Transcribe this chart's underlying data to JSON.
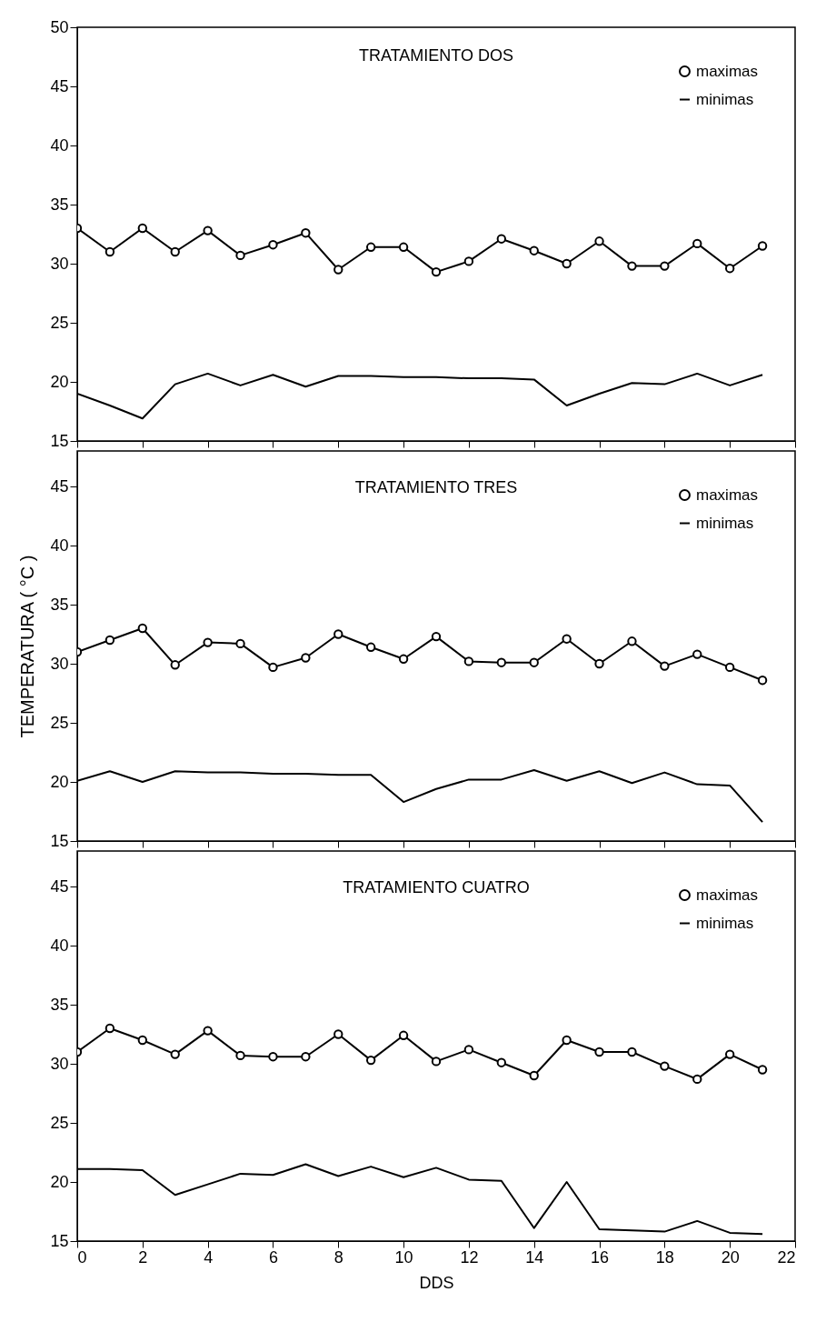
{
  "chart_data": [
    {
      "type": "line",
      "title": "TRATAMIENTO DOS",
      "x": [
        0,
        1,
        2,
        3,
        4,
        5,
        6,
        7,
        8,
        9,
        10,
        11,
        12,
        13,
        14,
        15,
        16,
        17,
        18,
        19,
        20,
        21
      ],
      "xlim": [
        0,
        22
      ],
      "xticks": [
        0,
        2,
        4,
        6,
        8,
        10,
        12,
        14,
        16,
        18,
        20,
        22
      ],
      "ylim": [
        15,
        50
      ],
      "yticks": [
        15,
        20,
        25,
        30,
        35,
        40,
        45,
        50
      ],
      "tick_labels": "y",
      "grid": false,
      "legend": "top right",
      "series": [
        {
          "name": "maximas",
          "color": "#000000",
          "marker": "circle",
          "values": [
            33,
            31,
            33,
            31,
            32.8,
            30.7,
            31.6,
            32.6,
            29.5,
            31.4,
            31.4,
            29.3,
            30.2,
            32.1,
            31.1,
            30,
            31.9,
            29.8,
            29.8,
            31.7,
            29.6,
            31.5
          ]
        },
        {
          "name": "minimas",
          "color": "#000000",
          "marker": "none",
          "values": [
            19,
            18,
            16.9,
            19.8,
            20.7,
            19.7,
            20.6,
            19.6,
            20.5,
            20.5,
            20.4,
            20.4,
            20.3,
            20.3,
            20.2,
            18,
            19,
            19.9,
            19.8,
            20.7,
            19.7,
            20.6
          ]
        }
      ]
    },
    {
      "type": "line",
      "title": "TRATAMIENTO TRES",
      "ylabel": "TEMPERATURA ( °C )",
      "x": [
        0,
        1,
        2,
        3,
        4,
        5,
        6,
        7,
        8,
        9,
        10,
        11,
        12,
        13,
        14,
        15,
        16,
        17,
        18,
        19,
        20,
        21
      ],
      "xlim": [
        0,
        22
      ],
      "xticks": [
        0,
        2,
        4,
        6,
        8,
        10,
        12,
        14,
        16,
        18,
        20,
        22
      ],
      "ylim": [
        15,
        48
      ],
      "yticks": [
        15,
        20,
        25,
        30,
        35,
        40,
        45
      ],
      "tick_labels": "y",
      "grid": false,
      "legend": "top right",
      "series": [
        {
          "name": "maximas",
          "color": "#000000",
          "marker": "circle",
          "values": [
            31,
            32,
            33,
            29.9,
            31.8,
            31.7,
            29.7,
            30.5,
            32.5,
            31.4,
            30.4,
            32.3,
            30.2,
            30.1,
            30.1,
            32.1,
            30,
            31.9,
            29.8,
            30.8,
            29.7,
            28.6
          ]
        },
        {
          "name": "minimas",
          "color": "#000000",
          "marker": "none",
          "values": [
            20.1,
            20.9,
            20,
            20.9,
            20.8,
            20.8,
            20.7,
            20.7,
            20.6,
            20.6,
            18.3,
            19.4,
            20.2,
            20.2,
            21,
            20.1,
            20.9,
            19.9,
            20.8,
            19.8,
            19.7,
            16.6
          ]
        }
      ]
    },
    {
      "type": "line",
      "title": "TRATAMIENTO CUATRO",
      "xlabel": "DDS",
      "x": [
        0,
        1,
        2,
        3,
        4,
        5,
        6,
        7,
        8,
        9,
        10,
        11,
        12,
        13,
        14,
        15,
        16,
        17,
        18,
        19,
        20,
        21
      ],
      "xlim": [
        0,
        22
      ],
      "xticks": [
        0,
        2,
        4,
        6,
        8,
        10,
        12,
        14,
        16,
        18,
        20,
        22
      ],
      "ylim": [
        15,
        48
      ],
      "yticks": [
        15,
        20,
        25,
        30,
        35,
        40,
        45
      ],
      "grid": false,
      "legend": "top right",
      "series": [
        {
          "name": "maximas",
          "color": "#000000",
          "marker": "circle",
          "values": [
            31,
            33,
            32,
            30.8,
            32.8,
            30.7,
            30.6,
            30.6,
            32.5,
            30.3,
            32.4,
            30.2,
            31.2,
            30.1,
            29,
            32,
            31,
            31,
            29.8,
            28.7,
            30.8,
            29.5
          ]
        },
        {
          "name": "minimas",
          "color": "#000000",
          "marker": "none",
          "values": [
            21.1,
            21.1,
            21,
            18.9,
            19.8,
            20.7,
            20.6,
            21.5,
            20.5,
            21.3,
            20.4,
            21.2,
            20.2,
            20.1,
            16.1,
            20,
            16,
            15.9,
            15.8,
            16.7,
            15.7,
            15.6
          ]
        }
      ]
    }
  ]
}
